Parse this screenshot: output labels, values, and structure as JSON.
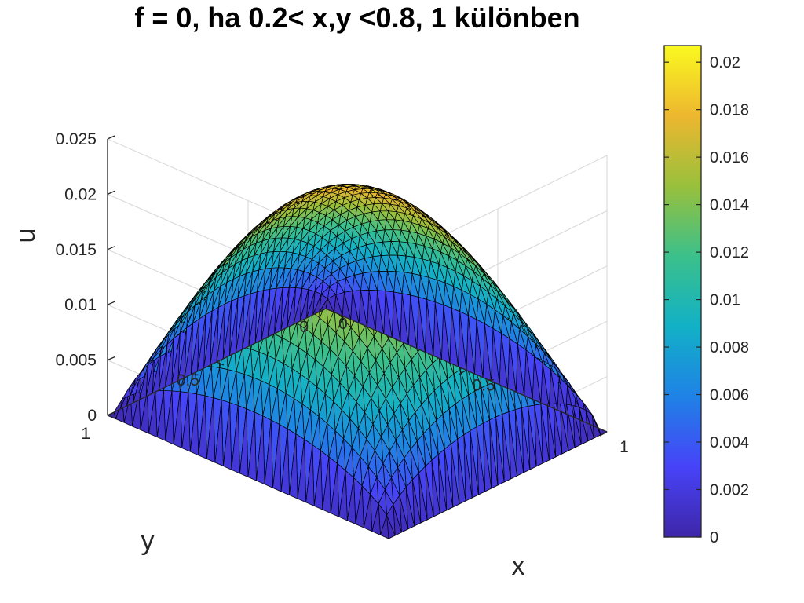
{
  "chart_data": {
    "type": "surface",
    "title": "f = 0, ha 0.2< x,y <0.8, 1 különben",
    "xlabel": "x",
    "ylabel": "y",
    "zlabel": "u",
    "xlim": [
      0,
      1
    ],
    "ylim": [
      0,
      1
    ],
    "zlim": [
      0,
      0.025
    ],
    "x_ticks": [
      "0",
      "0.5",
      "1"
    ],
    "y_ticks": [
      "0",
      "0.5",
      "1"
    ],
    "z_ticks": [
      "0",
      "0.005",
      "0.01",
      "0.015",
      "0.02",
      "0.025"
    ],
    "x_tick_values": [
      0,
      0.5,
      1
    ],
    "y_tick_values": [
      0,
      0.5,
      1
    ],
    "z_tick_values": [
      0,
      0.005,
      0.01,
      0.015,
      0.02,
      0.025
    ],
    "grid": true,
    "colormap": "parula",
    "colormap_stops": [
      "#3e26a8",
      "#4743f8",
      "#1f82e6",
      "#12b1c6",
      "#3bc08b",
      "#99c03c",
      "#edb72f",
      "#faf920"
    ],
    "surface_max": 0.0207,
    "colorbar": {
      "location": "right",
      "range": [
        0,
        0.0207
      ],
      "ticks": [
        "0",
        "0.002",
        "0.004",
        "0.006",
        "0.008",
        "0.01",
        "0.012",
        "0.014",
        "0.016",
        "0.018",
        "0.02"
      ],
      "tick_values": [
        0,
        0.002,
        0.004,
        0.006,
        0.008,
        0.01,
        0.012,
        0.014,
        0.016,
        0.018,
        0.02
      ]
    }
  }
}
